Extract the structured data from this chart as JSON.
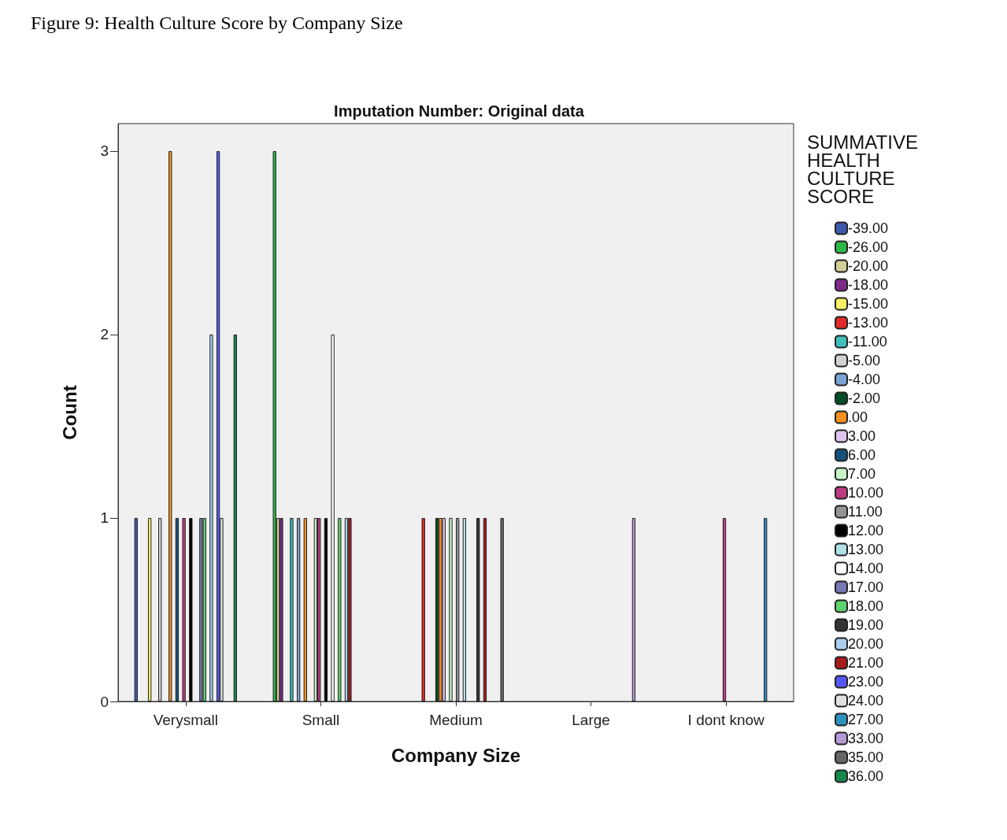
{
  "chart_data": {
    "type": "bar",
    "title": "Figure 9: Health Culture Score by Company Size",
    "subtitle": "Imputation Number: Original data",
    "xlabel": "Company Size",
    "ylabel": "Count",
    "legend_title": "SUMMATIVE HEALTH CULTURE SCORE",
    "legend": "right",
    "grid": false,
    "categories": [
      "Verysmall",
      "Small",
      "Medium",
      "Large",
      "I dont know"
    ],
    "ylim": [
      0,
      3.15
    ],
    "yticks": [
      0,
      1,
      2,
      3
    ],
    "series": [
      {
        "name": "-39.00",
        "color": "#3e58ac",
        "values": [
          1,
          null,
          null,
          null,
          null
        ]
      },
      {
        "name": "-26.00",
        "color": "#2eb848",
        "values": [
          null,
          3,
          null,
          null,
          null
        ]
      },
      {
        "name": "-20.00",
        "color": "#d3ce97",
        "values": [
          null,
          1,
          null,
          null,
          null
        ]
      },
      {
        "name": "-18.00",
        "color": "#7c2b8b",
        "values": [
          null,
          1,
          null,
          null,
          null
        ]
      },
      {
        "name": "-15.00",
        "color": "#f8f166",
        "values": [
          1,
          null,
          null,
          null,
          null
        ]
      },
      {
        "name": "-13.00",
        "color": "#e42a28",
        "values": [
          null,
          null,
          1,
          null,
          null
        ]
      },
      {
        "name": "-11.00",
        "color": "#41bdbb",
        "values": [
          null,
          1,
          null,
          null,
          null
        ]
      },
      {
        "name": "-5.00",
        "color": "#d1d1d1",
        "values": [
          1,
          null,
          null,
          null,
          null
        ]
      },
      {
        "name": "-4.00",
        "color": "#7aa3d5",
        "values": [
          null,
          1,
          null,
          null,
          null
        ]
      },
      {
        "name": "-2.00",
        "color": "#004c24",
        "values": [
          null,
          null,
          1,
          null,
          null
        ]
      },
      {
        "name": ".00",
        "color": "#f7921e",
        "values": [
          3,
          1,
          1,
          null,
          null
        ]
      },
      {
        "name": "3.00",
        "color": "#e0c3ef",
        "values": [
          null,
          null,
          1,
          null,
          null
        ]
      },
      {
        "name": "6.00",
        "color": "#15517a",
        "values": [
          1,
          null,
          null,
          null,
          null
        ]
      },
      {
        "name": "7.00",
        "color": "#c8f4c5",
        "values": [
          null,
          1,
          1,
          null,
          null
        ]
      },
      {
        "name": "10.00",
        "color": "#bd3a82",
        "values": [
          1,
          1,
          null,
          null,
          1
        ]
      },
      {
        "name": "11.00",
        "color": "#949494",
        "values": [
          null,
          null,
          1,
          null,
          null
        ]
      },
      {
        "name": "12.00",
        "color": "#000000",
        "values": [
          1,
          1,
          null,
          null,
          null
        ]
      },
      {
        "name": "13.00",
        "color": "#aee0e6",
        "values": [
          null,
          null,
          1,
          null,
          null
        ]
      },
      {
        "name": "14.00",
        "color": "#ffffff",
        "values": [
          null,
          2,
          null,
          null,
          null
        ]
      },
      {
        "name": "17.00",
        "color": "#7976b5",
        "values": [
          1,
          null,
          null,
          null,
          null
        ]
      },
      {
        "name": "18.00",
        "color": "#5fd36d",
        "values": [
          1,
          1,
          null,
          null,
          null
        ]
      },
      {
        "name": "19.00",
        "color": "#333333",
        "values": [
          null,
          null,
          1,
          null,
          null
        ]
      },
      {
        "name": "20.00",
        "color": "#aacfee",
        "values": [
          2,
          1,
          null,
          null,
          null
        ]
      },
      {
        "name": "21.00",
        "color": "#a61b1b",
        "values": [
          null,
          1,
          1,
          null,
          null
        ]
      },
      {
        "name": "23.00",
        "color": "#5358f5",
        "values": [
          3,
          null,
          null,
          null,
          null
        ]
      },
      {
        "name": "24.00",
        "color": "#e0e0e0",
        "values": [
          1,
          null,
          null,
          null,
          null
        ]
      },
      {
        "name": "27.00",
        "color": "#2c91bd",
        "values": [
          null,
          null,
          null,
          null,
          1
        ]
      },
      {
        "name": "33.00",
        "color": "#b29ad6",
        "values": [
          null,
          null,
          null,
          1,
          null
        ]
      },
      {
        "name": "35.00",
        "color": "#666666",
        "values": [
          null,
          null,
          1,
          null,
          null
        ]
      },
      {
        "name": "36.00",
        "color": "#16864a",
        "values": [
          2,
          null,
          null,
          null,
          null
        ]
      }
    ]
  }
}
